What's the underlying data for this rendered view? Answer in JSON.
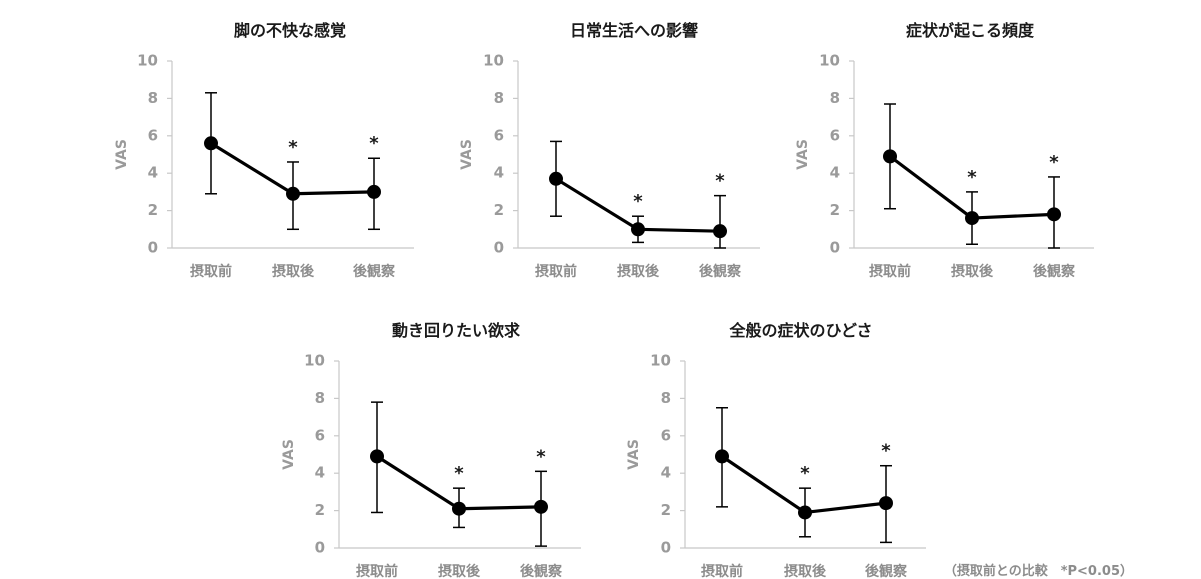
{
  "note": "（摂取前との比較　*P<0.05）",
  "chart_data": [
    {
      "type": "line",
      "title": "脚の不快な感覚",
      "ylabel": "VAS",
      "ylim": [
        0,
        10
      ],
      "yticks": [
        0,
        2,
        4,
        6,
        8,
        10
      ],
      "categories": [
        "摂取前",
        "摂取後",
        "後観察"
      ],
      "values": [
        5.6,
        2.9,
        3.0
      ],
      "error_upper": [
        8.3,
        4.6,
        4.8
      ],
      "error_lower": [
        2.9,
        1.0,
        1.0
      ],
      "significance": [
        "",
        "*",
        "*"
      ]
    },
    {
      "type": "line",
      "title": "日常生活への影響",
      "ylabel": "VAS",
      "ylim": [
        0,
        10
      ],
      "yticks": [
        0,
        2,
        4,
        6,
        8,
        10
      ],
      "categories": [
        "摂取前",
        "摂取後",
        "後観察"
      ],
      "values": [
        3.7,
        1.0,
        0.9
      ],
      "error_upper": [
        5.7,
        1.7,
        2.8
      ],
      "error_lower": [
        1.7,
        0.3,
        0.0
      ],
      "significance": [
        "",
        "*",
        "*"
      ]
    },
    {
      "type": "line",
      "title": "症状が起こる頻度",
      "ylabel": "VAS",
      "ylim": [
        0,
        10
      ],
      "yticks": [
        0,
        2,
        4,
        6,
        8,
        10
      ],
      "categories": [
        "摂取前",
        "摂取後",
        "後観察"
      ],
      "values": [
        4.9,
        1.6,
        1.8
      ],
      "error_upper": [
        7.7,
        3.0,
        3.8
      ],
      "error_lower": [
        2.1,
        0.2,
        0.0
      ],
      "significance": [
        "",
        "*",
        "*"
      ]
    },
    {
      "type": "line",
      "title": "動き回りたい欲求",
      "ylabel": "VAS",
      "ylim": [
        0,
        10
      ],
      "yticks": [
        0,
        2,
        4,
        6,
        8,
        10
      ],
      "categories": [
        "摂取前",
        "摂取後",
        "後観察"
      ],
      "values": [
        4.9,
        2.1,
        2.2
      ],
      "error_upper": [
        7.8,
        3.2,
        4.1
      ],
      "error_lower": [
        1.9,
        1.1,
        0.1
      ],
      "significance": [
        "",
        "*",
        "*"
      ]
    },
    {
      "type": "line",
      "title": "全般の症状のひどさ",
      "ylabel": "VAS",
      "ylim": [
        0,
        10
      ],
      "yticks": [
        0,
        2,
        4,
        6,
        8,
        10
      ],
      "categories": [
        "摂取前",
        "摂取後",
        "後観察"
      ],
      "values": [
        4.9,
        1.9,
        2.4
      ],
      "error_upper": [
        7.5,
        3.2,
        4.4
      ],
      "error_lower": [
        2.2,
        0.6,
        0.3
      ],
      "significance": [
        "",
        "*",
        "*"
      ]
    }
  ]
}
